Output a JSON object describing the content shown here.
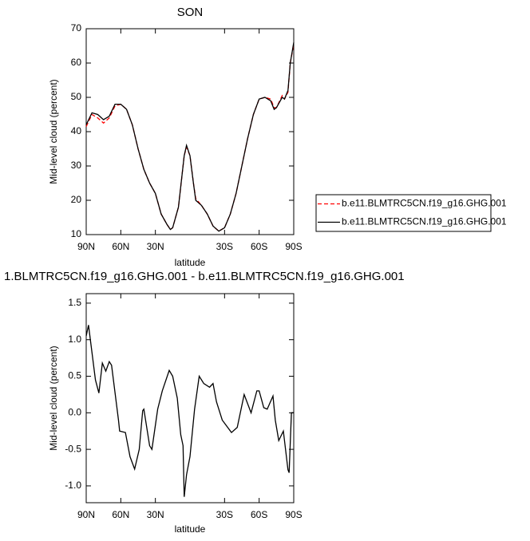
{
  "chart_data": [
    {
      "type": "line",
      "title": "SON",
      "x_label": "latitude",
      "y_label": "Mid-level cloud (percent)",
      "x": [
        90,
        85,
        80,
        75,
        70,
        65,
        60,
        55,
        50,
        45,
        40,
        35,
        30,
        25,
        20,
        17,
        15,
        10,
        7,
        5,
        3,
        0,
        -3,
        -5,
        -10,
        -15,
        -20,
        -25,
        -30,
        -35,
        -40,
        -45,
        -50,
        -55,
        -60,
        -65,
        -70,
        -73,
        -75,
        -80,
        -82,
        -85,
        -87,
        -90
      ],
      "series": [
        {
          "name": "b.e11.BLMTRC5CN.f19_g16.GHG.001",
          "color": "#ff0000",
          "dashed": true,
          "values": [
            41.5,
            45,
            44,
            42.5,
            44,
            47.5,
            48,
            46.5,
            42,
            35,
            29,
            25,
            22,
            16,
            13,
            11.5,
            12,
            18,
            27,
            33,
            35.5,
            33,
            25,
            20.5,
            18.5,
            16,
            12.5,
            11,
            12,
            16,
            22,
            30,
            38,
            45,
            49.5,
            50,
            49.5,
            47,
            47,
            50.5,
            49.5,
            51.5,
            60,
            65.5
          ]
        },
        {
          "name": "b.e11.BLMTRC5CN.f19_g16.GHG.001",
          "color": "#000000",
          "dashed": false,
          "values": [
            42,
            45.5,
            45,
            43.5,
            44.5,
            48,
            48,
            46.5,
            42,
            35,
            29,
            25,
            22,
            16,
            13,
            11.5,
            12,
            18,
            27,
            33,
            36,
            33,
            25,
            20,
            18.5,
            16,
            12.5,
            11,
            12,
            16,
            22,
            30,
            38,
            45,
            49.5,
            50,
            49,
            46.5,
            47,
            50,
            49.5,
            52,
            60,
            66
          ]
        }
      ],
      "xlim": [
        90,
        -90
      ],
      "xticks": [
        {
          "value": 90,
          "label": "90N"
        },
        {
          "value": 60,
          "label": "60N"
        },
        {
          "value": 30,
          "label": "30N"
        },
        {
          "value": -30,
          "label": "30S"
        },
        {
          "value": -60,
          "label": "60S"
        },
        {
          "value": -90,
          "label": "90S"
        }
      ],
      "ylim": [
        10,
        70
      ],
      "yticks": [
        10,
        20,
        30,
        40,
        50,
        60,
        70
      ],
      "legend": "right"
    },
    {
      "type": "line",
      "title": "1.BLMTRC5CN.f19_g16.GHG.001 - b.e11.BLMTRC5CN.f19_g16.GHG.001",
      "x_label": "latitude",
      "y_label": "Mid-level cloud (percent)",
      "x": [
        90,
        88,
        82,
        79,
        76,
        73,
        70,
        68,
        62,
        61,
        56,
        52,
        48,
        44,
        41,
        40,
        35,
        33,
        28,
        24,
        18,
        15,
        11,
        8,
        6,
        5,
        3,
        0,
        -4,
        -8,
        -12,
        -17,
        -20,
        -23,
        -28,
        -36,
        -41,
        -47,
        -53,
        -58,
        -60,
        -64,
        -67,
        -72,
        -74,
        -77,
        -81,
        -85,
        -86,
        -88,
        -90
      ],
      "series": [
        {
          "color": "#000000",
          "dashed": false,
          "values": [
            1.05,
            1.2,
            0.45,
            0.27,
            0.68,
            0.57,
            0.7,
            0.65,
            -0.1,
            -0.25,
            -0.27,
            -0.6,
            -0.77,
            -0.5,
            0.03,
            0.05,
            -0.45,
            -0.5,
            0.05,
            0.3,
            0.58,
            0.5,
            0.2,
            -0.3,
            -0.45,
            -1.15,
            -0.85,
            -0.6,
            0.05,
            0.5,
            0.4,
            0.35,
            0.4,
            0.15,
            -0.1,
            -0.27,
            -0.2,
            0.25,
            0.0,
            0.3,
            0.3,
            0.07,
            0.05,
            0.23,
            -0.1,
            -0.38,
            -0.25,
            -0.78,
            -0.82,
            0.0,
            0.0
          ]
        }
      ],
      "xlim": [
        90,
        -90
      ],
      "xticks": [
        {
          "value": 90,
          "label": "90N"
        },
        {
          "value": 60,
          "label": "60N"
        },
        {
          "value": 30,
          "label": "30N"
        },
        {
          "value": -30,
          "label": "30S"
        },
        {
          "value": -60,
          "label": "60S"
        },
        {
          "value": -90,
          "label": "90S"
        }
      ],
      "ylim": [
        -1.23,
        1.63
      ],
      "yticks": [
        1.5,
        {
          "value": 1.0,
          "label": "1.0"
        },
        0.5,
        {
          "value": 0.0,
          "label": "0.0"
        },
        -0.5,
        {
          "value": -1.0,
          "label": "-1.0"
        }
      ]
    }
  ]
}
